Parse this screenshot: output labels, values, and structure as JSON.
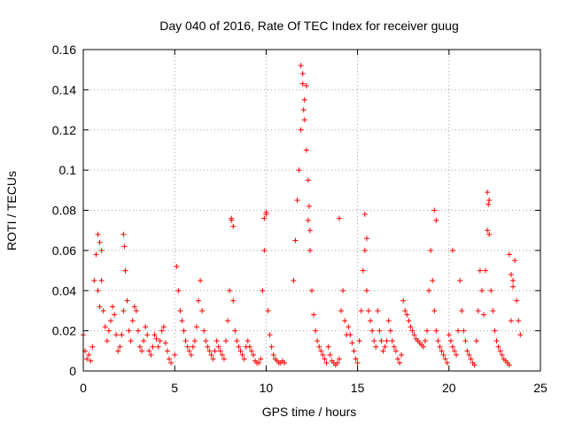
{
  "chart_data": {
    "type": "scatter",
    "title": "Day 040 of 2016, Rate Of TEC Index for receiver guug",
    "xlabel": "GPS time / hours",
    "ylabel": "ROTI / TECUs",
    "xlim": [
      0,
      25
    ],
    "ylim": [
      0,
      0.16
    ],
    "x_ticks": [
      0,
      5,
      10,
      15,
      20,
      25
    ],
    "x_tick_labels": [
      "0",
      "5",
      "10",
      "15",
      "20",
      "25"
    ],
    "y_ticks": [
      0,
      0.02,
      0.04,
      0.06,
      0.08,
      0.1,
      0.12,
      0.14,
      0.16
    ],
    "y_tick_labels": [
      "0",
      "0.02",
      "0.04",
      "0.06",
      "0.08",
      "0.1",
      "0.12",
      "0.14",
      "0.16"
    ],
    "grid": true,
    "marker": "+",
    "series_color": "#ff0000",
    "series": [
      {
        "name": "ROTI",
        "x": [
          0.0,
          0.1,
          0.2,
          0.3,
          0.4,
          0.5,
          0.6,
          0.7,
          0.8,
          0.9,
          1.0,
          1.1,
          1.2,
          1.3,
          1.4,
          1.5,
          1.6,
          1.7,
          1.8,
          1.9,
          2.0,
          2.1,
          2.2,
          2.3,
          2.4,
          2.5,
          2.6,
          2.7,
          2.8,
          2.9,
          3.0,
          3.1,
          3.2,
          3.3,
          3.4,
          3.5,
          3.6,
          3.7,
          3.8,
          3.9,
          4.0,
          4.1,
          4.2,
          4.3,
          4.4,
          4.5,
          4.6,
          4.7,
          4.8,
          5.0,
          5.1,
          5.2,
          5.3,
          5.4,
          5.5,
          5.6,
          5.7,
          5.8,
          5.9,
          6.0,
          6.1,
          6.2,
          6.3,
          6.4,
          6.5,
          6.6,
          6.7,
          6.8,
          6.9,
          7.0,
          7.1,
          7.2,
          7.3,
          7.4,
          7.5,
          7.6,
          7.7,
          7.8,
          7.9,
          8.0,
          8.1,
          8.2,
          8.3,
          8.4,
          8.5,
          8.6,
          8.7,
          8.8,
          8.9,
          9.0,
          9.1,
          9.2,
          9.3,
          9.4,
          9.5,
          9.6,
          9.7,
          9.8,
          9.9,
          10.0,
          10.1,
          10.2,
          10.3,
          10.4,
          10.5,
          10.6,
          10.7,
          10.8,
          10.9,
          11.0,
          11.5,
          11.6,
          11.7,
          11.8,
          11.9,
          12.0,
          12.1,
          12.2,
          12.3,
          12.4,
          12.5,
          12.6,
          12.7,
          12.8,
          12.9,
          13.0,
          13.1,
          13.2,
          13.3,
          13.4,
          13.5,
          13.6,
          13.7,
          13.8,
          13.9,
          14.0,
          14.1,
          14.2,
          14.3,
          14.4,
          14.5,
          14.6,
          14.7,
          14.8,
          14.9,
          15.0,
          15.1,
          15.2,
          15.3,
          15.4,
          15.5,
          15.6,
          15.7,
          15.8,
          15.9,
          16.0,
          16.1,
          16.2,
          16.3,
          16.4,
          16.5,
          16.6,
          16.7,
          16.8,
          16.9,
          17.0,
          17.1,
          17.2,
          17.3,
          17.4,
          17.5,
          17.6,
          17.7,
          17.8,
          17.9,
          18.0,
          18.1,
          18.2,
          18.3,
          18.4,
          18.5,
          18.6,
          18.7,
          18.8,
          18.9,
          19.0,
          19.1,
          19.2,
          19.3,
          19.4,
          19.5,
          19.6,
          19.7,
          19.8,
          19.9,
          20.0,
          20.1,
          20.2,
          20.3,
          20.4,
          20.5,
          20.6,
          20.7,
          20.8,
          20.9,
          21.0,
          21.1,
          21.2,
          21.3,
          21.4,
          21.5,
          21.6,
          21.7,
          21.8,
          21.9,
          22.0,
          22.1,
          22.2,
          22.3,
          22.4,
          22.5,
          22.6,
          22.7,
          22.8,
          22.9,
          23.0,
          23.1,
          23.2,
          23.3,
          23.4,
          23.5,
          23.6,
          23.7,
          23.8,
          23.9,
          0.8,
          0.9,
          1.0,
          2.2,
          2.25,
          2.3,
          8.1,
          8.2,
          9.9,
          10.0,
          11.9,
          12.0,
          12.05,
          12.1,
          12.2,
          12.3,
          12.35,
          12.4,
          14.0,
          15.4,
          15.5,
          19.2,
          19.3,
          20.2,
          22.1,
          22.15,
          22.2,
          23.3,
          23.4,
          23.5
        ],
        "y": [
          0.018,
          0.01,
          0.006,
          0.008,
          0.005,
          0.012,
          0.045,
          0.058,
          0.04,
          0.032,
          0.045,
          0.03,
          0.022,
          0.015,
          0.02,
          0.025,
          0.032,
          0.028,
          0.018,
          0.01,
          0.012,
          0.018,
          0.03,
          0.05,
          0.035,
          0.02,
          0.015,
          0.025,
          0.032,
          0.03,
          0.02,
          0.012,
          0.01,
          0.015,
          0.022,
          0.018,
          0.01,
          0.008,
          0.012,
          0.018,
          0.016,
          0.012,
          0.015,
          0.02,
          0.022,
          0.014,
          0.01,
          0.006,
          0.004,
          0.008,
          0.052,
          0.04,
          0.03,
          0.025,
          0.02,
          0.015,
          0.012,
          0.01,
          0.008,
          0.012,
          0.015,
          0.022,
          0.035,
          0.045,
          0.03,
          0.02,
          0.015,
          0.012,
          0.01,
          0.008,
          0.006,
          0.01,
          0.015,
          0.012,
          0.01,
          0.008,
          0.006,
          0.015,
          0.025,
          0.04,
          0.075,
          0.035,
          0.02,
          0.015,
          0.012,
          0.01,
          0.008,
          0.006,
          0.012,
          0.015,
          0.012,
          0.01,
          0.008,
          0.005,
          0.004,
          0.004,
          0.006,
          0.04,
          0.06,
          0.078,
          0.03,
          0.018,
          0.012,
          0.008,
          0.006,
          0.005,
          0.004,
          0.004,
          0.005,
          0.004,
          0.045,
          0.065,
          0.085,
          0.1,
          0.12,
          0.148,
          0.135,
          0.11,
          0.075,
          0.06,
          0.04,
          0.028,
          0.02,
          0.015,
          0.012,
          0.01,
          0.008,
          0.006,
          0.004,
          0.012,
          0.008,
          0.005,
          0.004,
          0.003,
          0.004,
          0.006,
          0.03,
          0.04,
          0.025,
          0.018,
          0.022,
          0.018,
          0.014,
          0.01,
          0.006,
          0.004,
          0.015,
          0.03,
          0.05,
          0.06,
          0.04,
          0.03,
          0.025,
          0.02,
          0.015,
          0.012,
          0.03,
          0.02,
          0.015,
          0.01,
          0.012,
          0.015,
          0.025,
          0.02,
          0.015,
          0.012,
          0.01,
          0.006,
          0.004,
          0.008,
          0.035,
          0.03,
          0.028,
          0.025,
          0.022,
          0.02,
          0.018,
          0.016,
          0.015,
          0.014,
          0.013,
          0.012,
          0.015,
          0.02,
          0.04,
          0.06,
          0.045,
          0.03,
          0.02,
          0.015,
          0.012,
          0.01,
          0.008,
          0.006,
          0.004,
          0.018,
          0.015,
          0.012,
          0.01,
          0.008,
          0.02,
          0.045,
          0.03,
          0.02,
          0.015,
          0.01,
          0.008,
          0.006,
          0.004,
          0.003,
          0.015,
          0.03,
          0.05,
          0.04,
          0.028,
          0.05,
          0.07,
          0.085,
          0.04,
          0.03,
          0.02,
          0.015,
          0.012,
          0.01,
          0.008,
          0.006,
          0.005,
          0.004,
          0.003,
          0.025,
          0.045,
          0.055,
          0.035,
          0.025,
          0.018,
          0.068,
          0.064,
          0.06,
          0.068,
          0.062,
          0.05,
          0.076,
          0.072,
          0.076,
          0.079,
          0.152,
          0.143,
          0.13,
          0.125,
          0.142,
          0.095,
          0.082,
          0.07,
          0.076,
          0.078,
          0.066,
          0.08,
          0.075,
          0.06,
          0.089,
          0.083,
          0.068,
          0.058,
          0.048,
          0.042
        ]
      }
    ]
  }
}
